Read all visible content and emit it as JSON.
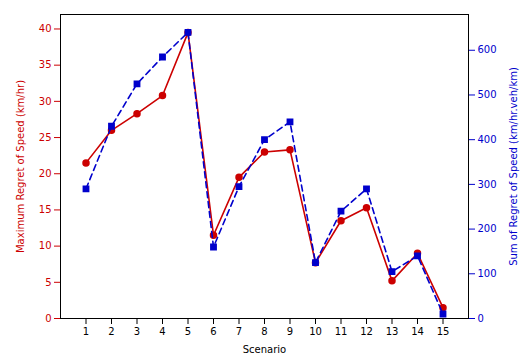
{
  "chart_data": {
    "type": "line",
    "x": [
      1,
      2,
      3,
      4,
      5,
      6,
      7,
      8,
      9,
      10,
      11,
      12,
      13,
      14,
      15
    ],
    "xlabel": "Scenario",
    "ylabel": "Maximum Regret of Speed (km/hr)",
    "y2label": "Sum of Regret of Speed (km/hr.veh/km)",
    "xlim": [
      0,
      16
    ],
    "xticks": [
      1,
      2,
      3,
      4,
      5,
      6,
      7,
      8,
      9,
      10,
      11,
      12,
      13,
      14,
      15
    ],
    "ylim": [
      0,
      42
    ],
    "yticks": [
      0,
      5,
      10,
      15,
      20,
      25,
      30,
      35,
      40
    ],
    "y2lim": [
      0,
      680
    ],
    "y2ticks": [
      0,
      100,
      200,
      300,
      400,
      500,
      600
    ],
    "grid": false,
    "series": [
      {
        "color": "#CC0000",
        "marker": "circle",
        "line_style": "solid",
        "values": [
          21.5,
          26.0,
          28.3,
          30.8,
          39.5,
          11.5,
          19.5,
          23.0,
          23.3,
          7.7,
          13.5,
          15.3,
          5.2,
          9.0,
          1.5
        ]
      },
      {
        "color": "#0000CC",
        "marker": "square",
        "line_style": "dashed",
        "axis": "y2",
        "values": [
          290,
          430,
          525,
          585,
          640,
          160,
          295,
          400,
          440,
          125,
          240,
          290,
          105,
          140,
          10
        ]
      }
    ]
  }
}
